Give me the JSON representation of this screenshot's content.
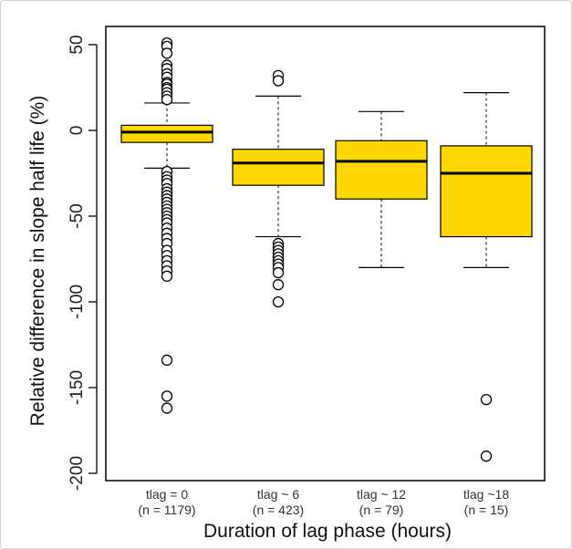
{
  "chart_data": {
    "type": "boxplot",
    "title": "",
    "xlabel": "Duration of lag phase (hours)",
    "ylabel": "Relative difference in slope half life (%)",
    "ylim": [
      -200,
      50
    ],
    "yticks": [
      50,
      0,
      -50,
      -100,
      -150,
      -200
    ],
    "grid": false,
    "box_color": "#FFD700",
    "categories": [
      {
        "label": "tlag = 0",
        "n_label": "(n = 1179)"
      },
      {
        "label": "tlag ~ 6",
        "n_label": "(n = 423)"
      },
      {
        "label": "tlag ~ 12",
        "n_label": "(n = 79)"
      },
      {
        "label": "tlag ~18",
        "n_label": "(n = 15)"
      }
    ],
    "boxes": [
      {
        "whisker_low": -22,
        "q1": -7,
        "median": -1,
        "q3": 3,
        "whisker_high": 16,
        "outliers": [
          51,
          49,
          45,
          38,
          36,
          33,
          31,
          28,
          27,
          25,
          24,
          22,
          20,
          18,
          -24,
          -27,
          -29,
          -31,
          -34,
          -36,
          -38,
          -40,
          -42,
          -44,
          -46,
          -48,
          -50,
          -52,
          -54,
          -57,
          -60,
          -63,
          -66,
          -70,
          -73,
          -76,
          -79,
          -82,
          -85,
          -134,
          -155,
          -162
        ]
      },
      {
        "whisker_low": -62,
        "q1": -32,
        "median": -19,
        "q3": -11,
        "whisker_high": 20,
        "outliers": [
          32,
          29,
          -66,
          -68,
          -70,
          -72,
          -74,
          -76,
          -78,
          -80,
          -83,
          -90,
          -100
        ]
      },
      {
        "whisker_low": -80,
        "q1": -40,
        "median": -18,
        "q3": -6,
        "whisker_high": 11,
        "outliers": []
      },
      {
        "whisker_low": -80,
        "q1": -62,
        "median": -25,
        "q3": -9,
        "whisker_high": 22,
        "outliers": [
          -157,
          -190
        ]
      }
    ]
  }
}
